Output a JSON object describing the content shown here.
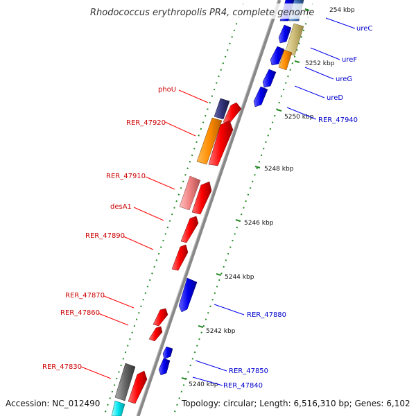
{
  "title": "Rhodococcus erythropolis PR4, complete genome",
  "accession_text": "Accession: NC_012490",
  "topology_text": "Topology: circular; Length: 6,516,310 bp; Genes: 6,102",
  "colors": {
    "forward": "#ff0000",
    "reverse": "#0000ee",
    "backbone": "#888888",
    "tick_dots": "#228822",
    "label_left": "#cc0000",
    "label_right": "#0000cc"
  },
  "tick_labels": [
    "254 kbp",
    "5252 kbp",
    "5250 kbp",
    "5248 kbp",
    "5246 kbp",
    "5244 kbp",
    "5242 kbp",
    "5240 kbp"
  ],
  "left_labels": [
    "phoU",
    "RER_47920",
    "RER_47910",
    "desA1",
    "RER_47890",
    "RER_47870",
    "RER_47860",
    "RER_47830"
  ],
  "right_labels": [
    "ureC",
    "ureF",
    "ureG",
    "ureD",
    "RER_47940",
    "RER_47880",
    "RER_47850",
    "RER_47840"
  ]
}
